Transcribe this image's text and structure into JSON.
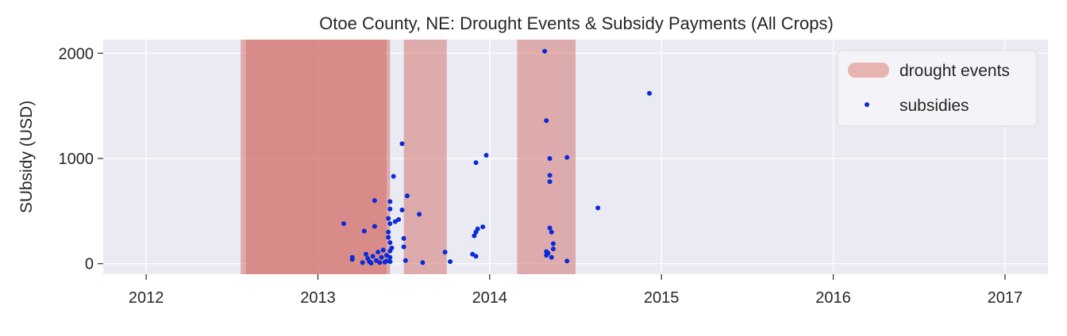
{
  "chart_data": {
    "type": "scatter",
    "title": "Otoe County, NE: Drought Events & Subsidy Payments (All Crops)",
    "xlabel": "",
    "ylabel": "SUbsidy (USD)",
    "xlim": [
      2011.75,
      2017.25
    ],
    "ylim": [
      -100,
      2130
    ],
    "x_ticks": [
      2012,
      2013,
      2014,
      2015,
      2016,
      2017
    ],
    "x_tick_labels": [
      "2012",
      "2013",
      "2014",
      "2015",
      "2016",
      "2017"
    ],
    "y_ticks": [
      0,
      1000,
      2000
    ],
    "y_tick_labels": [
      "0",
      "1000",
      "2000"
    ],
    "grid": true,
    "legend_position": "top-right",
    "drought_events": {
      "name": "drought events",
      "color": "#d16b66",
      "intervals": [
        [
          2012.55,
          2013.42
        ],
        [
          2012.58,
          2013.4
        ],
        [
          2013.5,
          2013.75
        ],
        [
          2014.16,
          2014.5
        ]
      ]
    },
    "series": [
      {
        "name": "subsidies",
        "color": "#0a2bd9",
        "points": [
          [
            2013.15,
            380
          ],
          [
            2013.2,
            60
          ],
          [
            2013.2,
            40
          ],
          [
            2013.26,
            10
          ],
          [
            2013.27,
            310
          ],
          [
            2013.28,
            90
          ],
          [
            2013.29,
            50
          ],
          [
            2013.3,
            20
          ],
          [
            2013.31,
            5
          ],
          [
            2013.32,
            70
          ],
          [
            2013.33,
            600
          ],
          [
            2013.33,
            355
          ],
          [
            2013.34,
            30
          ],
          [
            2013.35,
            110
          ],
          [
            2013.36,
            10
          ],
          [
            2013.37,
            60
          ],
          [
            2013.38,
            130
          ],
          [
            2013.39,
            15
          ],
          [
            2013.4,
            80
          ],
          [
            2013.4,
            25
          ],
          [
            2013.41,
            430
          ],
          [
            2013.41,
            300
          ],
          [
            2013.41,
            250
          ],
          [
            2013.42,
            590
          ],
          [
            2013.42,
            520
          ],
          [
            2013.42,
            380
          ],
          [
            2013.42,
            200
          ],
          [
            2013.42,
            120
          ],
          [
            2013.42,
            60
          ],
          [
            2013.42,
            20
          ],
          [
            2013.43,
            150
          ],
          [
            2013.44,
            830
          ],
          [
            2013.45,
            400
          ],
          [
            2013.47,
            420
          ],
          [
            2013.49,
            1140
          ],
          [
            2013.49,
            510
          ],
          [
            2013.5,
            240
          ],
          [
            2013.5,
            160
          ],
          [
            2013.51,
            30
          ],
          [
            2013.52,
            645
          ],
          [
            2013.59,
            470
          ],
          [
            2013.61,
            10
          ],
          [
            2013.74,
            110
          ],
          [
            2013.77,
            20
          ],
          [
            2013.9,
            90
          ],
          [
            2013.91,
            265
          ],
          [
            2013.92,
            300
          ],
          [
            2013.92,
            960
          ],
          [
            2013.92,
            70
          ],
          [
            2013.93,
            330
          ],
          [
            2013.96,
            350
          ],
          [
            2013.98,
            1030
          ],
          [
            2014.32,
            2020
          ],
          [
            2014.33,
            1360
          ],
          [
            2014.33,
            115
          ],
          [
            2014.33,
            80
          ],
          [
            2014.34,
            100
          ],
          [
            2014.35,
            1000
          ],
          [
            2014.35,
            840
          ],
          [
            2014.35,
            780
          ],
          [
            2014.35,
            340
          ],
          [
            2014.36,
            60
          ],
          [
            2014.36,
            300
          ],
          [
            2014.37,
            190
          ],
          [
            2014.37,
            140
          ],
          [
            2014.45,
            1010
          ],
          [
            2014.45,
            25
          ],
          [
            2014.63,
            530
          ],
          [
            2014.93,
            1620
          ]
        ]
      }
    ],
    "legend": [
      {
        "label": "drought events",
        "kind": "patch"
      },
      {
        "label": "subsidies",
        "kind": "marker"
      }
    ]
  }
}
